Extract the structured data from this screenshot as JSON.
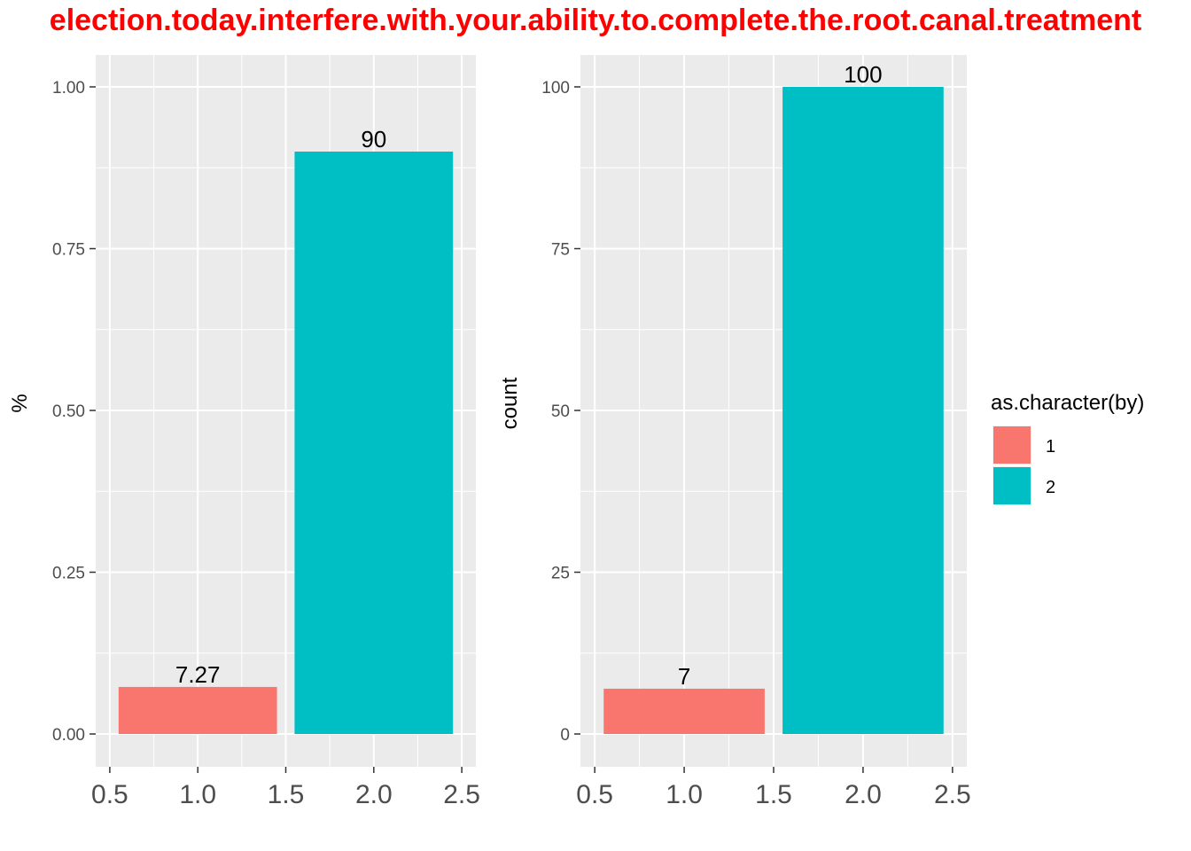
{
  "title": "election.today.interfere.with.your.ability.to.complete.the.root.canal.treatment",
  "chart_data": [
    {
      "type": "bar",
      "xlabel": "",
      "ylabel": "%",
      "xlim": [
        0.5,
        2.5
      ],
      "ylim": [
        0,
        1
      ],
      "xticks": [
        "0.5",
        "1.0",
        "1.5",
        "2.0",
        "2.5"
      ],
      "yticks": [
        "0.00",
        "0.25",
        "0.50",
        "0.75",
        "1.00"
      ],
      "bars": [
        {
          "group": "1",
          "x": 1,
          "value": 0.0727,
          "label": "7.27",
          "color": "#F8766D"
        },
        {
          "group": "2",
          "x": 2,
          "value": 0.9,
          "label": "90",
          "color": "#00BFC4"
        }
      ],
      "grid": true
    },
    {
      "type": "bar",
      "xlabel": "",
      "ylabel": "count",
      "xlim": [
        0.5,
        2.5
      ],
      "ylim": [
        0,
        100
      ],
      "xticks": [
        "0.5",
        "1.0",
        "1.5",
        "2.0",
        "2.5"
      ],
      "yticks": [
        "0",
        "25",
        "50",
        "75",
        "100"
      ],
      "bars": [
        {
          "group": "1",
          "x": 1,
          "value": 7,
          "label": "7",
          "color": "#F8766D"
        },
        {
          "group": "2",
          "x": 2,
          "value": 100,
          "label": "100",
          "color": "#00BFC4"
        }
      ],
      "grid": true
    }
  ],
  "legend": {
    "title": "as.character(by)",
    "placement": "right",
    "items": [
      {
        "label": "1",
        "color": "#F8766D"
      },
      {
        "label": "2",
        "color": "#00BFC4"
      }
    ]
  },
  "colors": {
    "panel": "#EBEBEB",
    "grid": "#FFFFFF",
    "title": "#FF0000"
  }
}
